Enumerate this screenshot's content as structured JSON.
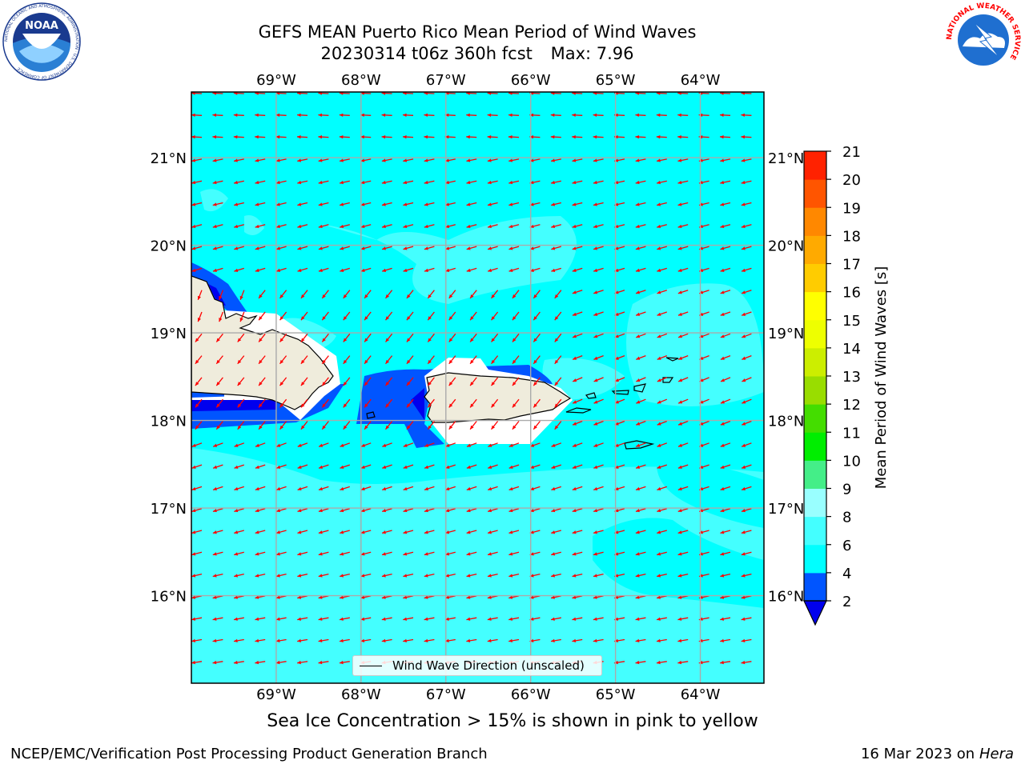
{
  "title": {
    "line1": "GEFS MEAN Puerto Rico Mean Period of Wind Waves",
    "line2_run": "20230314 t06z 360h fcst",
    "line2_max": "Max: 7.96"
  },
  "logos": {
    "left": {
      "name": "noaa-logo",
      "text": "NOAA",
      "ring_text": "NATIONAL OCEANIC AND ATMOSPHERIC ADMINISTRATION · U.S. DEPARTMENT OF COMMERCE"
    },
    "right": {
      "name": "nws-logo",
      "ring_text": "NATIONAL WEATHER SERVICE"
    }
  },
  "map": {
    "lon_ticks": [
      "69°W",
      "68°W",
      "67°W",
      "66°W",
      "65°W",
      "64°W"
    ],
    "lat_ticks": [
      "21°N",
      "20°N",
      "19°N",
      "18°N",
      "17°N",
      "16°N"
    ],
    "lon_range": [
      -70.0,
      -63.25
    ],
    "lat_range": [
      15.0,
      21.75
    ],
    "background_color": "#00ffff",
    "arrow_color": "#ff0000",
    "land_color": "#efecdc"
  },
  "colorbar": {
    "label": "Mean Period of Wind Waves [s]",
    "ticks": [
      "2",
      "4",
      "6",
      "8",
      "9",
      "10",
      "11",
      "12",
      "13",
      "14",
      "15",
      "16",
      "17",
      "18",
      "19",
      "20",
      "21"
    ],
    "colors": [
      "#0055ff",
      "#00ffff",
      "#44ffff",
      "#99ffff",
      "#44ee88",
      "#00ee00",
      "#44dd00",
      "#99dd00",
      "#ccee00",
      "#eeff00",
      "#ffff00",
      "#ffcc00",
      "#ffaa00",
      "#ff8800",
      "#ff5500",
      "#ff2200",
      "#ff0000"
    ],
    "under_color": "#0000ee"
  },
  "legend": {
    "label": "Wind Wave Direction (unscaled)"
  },
  "bottom_note": "Sea Ice Concentration > 15% is shown in pink to yellow",
  "footer": {
    "left": "NCEP/EMC/Verification Post Processing Product Generation Branch",
    "right_date": "16 Mar 2023 on",
    "right_host": "Hera"
  }
}
